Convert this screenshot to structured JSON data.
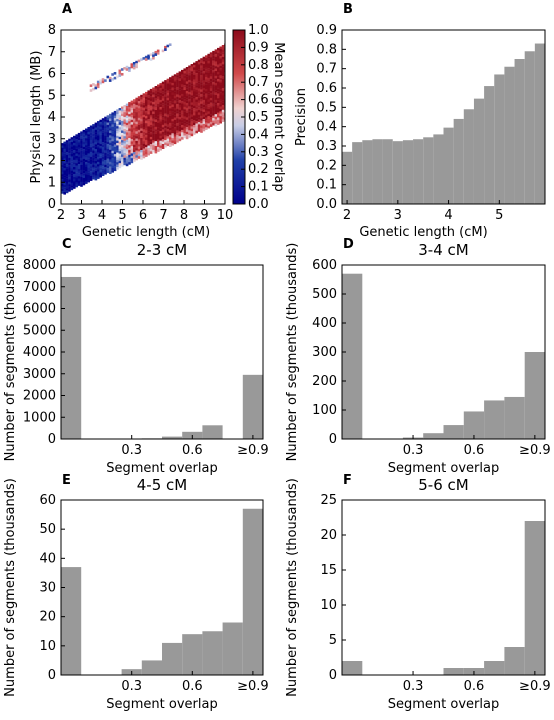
{
  "colors": {
    "bar": "#999999",
    "hex_low": "#00008b",
    "hex_mid": "#f2f2f2",
    "hex_high": "#b2182b"
  },
  "chart_data": [
    {
      "panel": "A",
      "type": "heatmap",
      "xlabel": "Genetic length (cM)",
      "ylabel": "Physical length (MB)",
      "xticks": [
        "2",
        "3",
        "4",
        "5",
        "6",
        "7",
        "8",
        "9",
        "10"
      ],
      "yticks": [
        "0",
        "1",
        "2",
        "3",
        "4",
        "5",
        "6",
        "7",
        "8"
      ],
      "xlim": [
        2,
        10
      ],
      "ylim": [
        0,
        8
      ],
      "colorbar": {
        "label": "Mean segment overlap",
        "ticks": [
          "0.0",
          "0.1",
          "0.2",
          "0.3",
          "0.4",
          "0.5",
          "0.6",
          "0.7",
          "0.8",
          "0.9",
          "1.0"
        ],
        "range": [
          0,
          1
        ]
      },
      "bands": [
        {
          "x": [
            2,
            10
          ],
          "y_lower": [
            0.5,
            3.9
          ],
          "y_upper": [
            2.8,
            7.4
          ]
        },
        {
          "x": [
            3.4,
            7.3
          ],
          "y_lower": [
            5.2,
            7.2
          ],
          "y_upper": [
            5.5,
            7.4
          ]
        }
      ]
    },
    {
      "panel": "B",
      "type": "bar",
      "xlabel": "Genetic length (cM)",
      "ylabel": "Precision",
      "xticks": [
        "2",
        "3",
        "4",
        "5"
      ],
      "yticks": [
        "0.0",
        "0.1",
        "0.2",
        "0.3",
        "0.4",
        "0.5",
        "0.6",
        "0.7",
        "0.8",
        "0.9"
      ],
      "xlim": [
        1.9,
        5.9
      ],
      "ylim": [
        0,
        0.9
      ],
      "bin_width": 0.2,
      "bin_starts": [
        1.9,
        2.1,
        2.3,
        2.5,
        2.7,
        2.9,
        3.1,
        3.3,
        3.5,
        3.7,
        3.9,
        4.1,
        4.3,
        4.5,
        4.7,
        4.9,
        5.1,
        5.3,
        5.5,
        5.7
      ],
      "values": [
        0.27,
        0.32,
        0.33,
        0.335,
        0.335,
        0.325,
        0.33,
        0.335,
        0.345,
        0.36,
        0.395,
        0.44,
        0.49,
        0.545,
        0.61,
        0.67,
        0.71,
        0.75,
        0.79,
        0.83
      ]
    },
    {
      "panel": "C",
      "type": "bar",
      "title": "2-3 cM",
      "xlabel": "Segment overlap",
      "ylabel": "Number of segments (thousands)",
      "xticks": [
        "0.3",
        "0.6",
        "≥0.9"
      ],
      "yticks": [
        "0",
        "1000",
        "2000",
        "3000",
        "4000",
        "5000",
        "6000",
        "7000",
        "8000"
      ],
      "ylim": [
        0,
        8000
      ],
      "bin_starts": [
        0.0,
        0.1,
        0.2,
        0.3,
        0.4,
        0.5,
        0.6,
        0.7,
        0.8,
        0.9
      ],
      "values": [
        7450,
        0,
        0,
        10,
        30,
        110,
        330,
        630,
        0,
        2950
      ]
    },
    {
      "panel": "D",
      "type": "bar",
      "title": "3-4 cM",
      "xlabel": "Segment overlap",
      "ylabel": "Number of segments (thousands)",
      "xticks": [
        "0.3",
        "0.6",
        "≥0.9"
      ],
      "yticks": [
        "0",
        "100",
        "200",
        "300",
        "400",
        "500",
        "600"
      ],
      "ylim": [
        0,
        600
      ],
      "bin_starts": [
        0.0,
        0.1,
        0.2,
        0.3,
        0.4,
        0.5,
        0.6,
        0.7,
        0.8,
        0.9
      ],
      "values": [
        570,
        0,
        0,
        5,
        20,
        48,
        95,
        133,
        145,
        300
      ]
    },
    {
      "panel": "E",
      "type": "bar",
      "title": "4-5 cM",
      "xlabel": "Segment overlap",
      "ylabel": "Number of segments (thousands)",
      "xticks": [
        "0.3",
        "0.6",
        "≥0.9"
      ],
      "yticks": [
        "0",
        "10",
        "20",
        "30",
        "40",
        "50",
        "60"
      ],
      "ylim": [
        0,
        60
      ],
      "bin_starts": [
        0.0,
        0.1,
        0.2,
        0.3,
        0.4,
        0.5,
        0.6,
        0.7,
        0.8,
        0.9
      ],
      "values": [
        37,
        0,
        0,
        2,
        5,
        11,
        14,
        15,
        18,
        57
      ]
    },
    {
      "panel": "F",
      "type": "bar",
      "title": "5-6 cM",
      "xlabel": "Segment overlap",
      "ylabel": "Number of segments (thousands)",
      "xticks": [
        "0.3",
        "0.6",
        "≥0.9"
      ],
      "yticks": [
        "0",
        "5",
        "10",
        "15",
        "20",
        "25"
      ],
      "ylim": [
        0,
        25
      ],
      "bin_starts": [
        0.0,
        0.1,
        0.2,
        0.3,
        0.4,
        0.5,
        0.6,
        0.7,
        0.8,
        0.9
      ],
      "values": [
        2,
        0,
        0,
        0,
        0,
        1,
        1,
        2,
        4,
        22
      ]
    }
  ]
}
